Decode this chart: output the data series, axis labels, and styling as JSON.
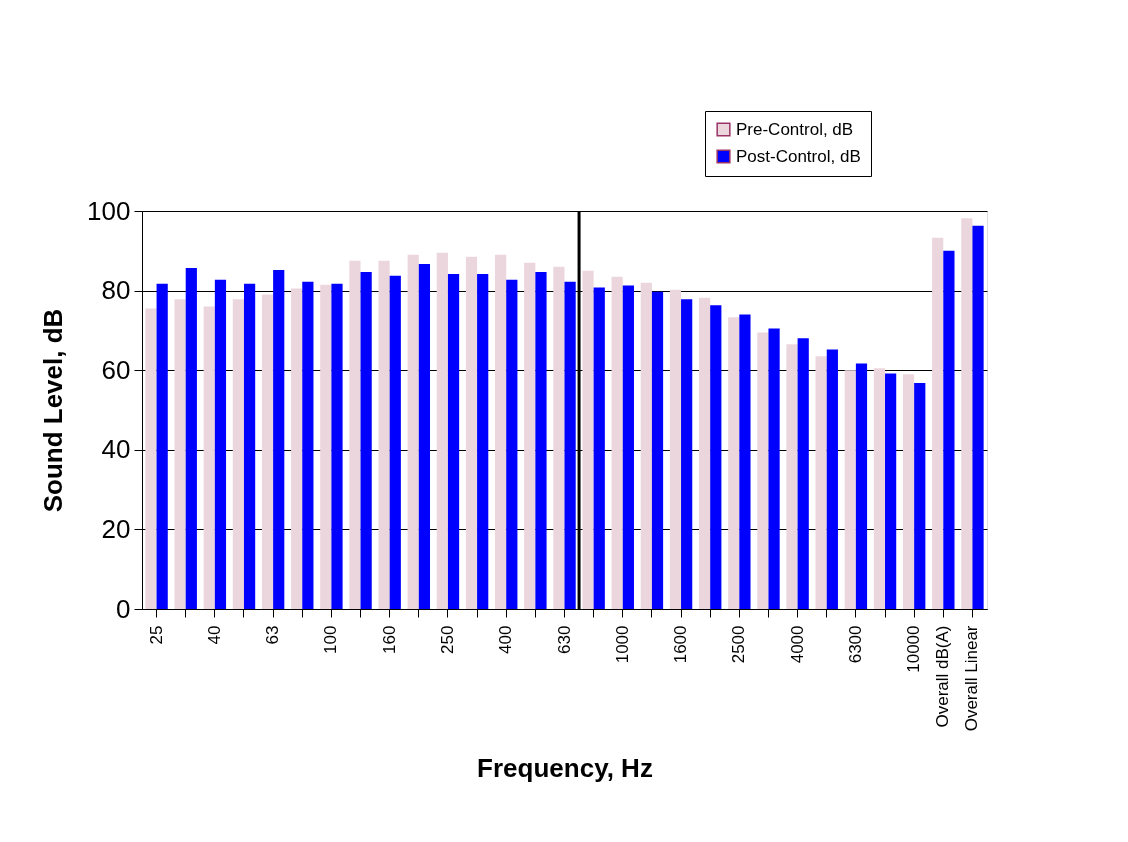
{
  "chart_data": {
    "type": "bar",
    "xlabel": "Frequency, Hz",
    "ylabel": "Sound Level, dB",
    "categories": [
      "25",
      null,
      "40",
      null,
      "63",
      null,
      "100",
      null,
      "160",
      null,
      "250",
      null,
      "400",
      null,
      "630",
      null,
      "1000",
      null,
      "1600",
      null,
      "2500",
      null,
      "4000",
      null,
      "6300",
      null,
      "10000",
      "Overall dB(A)",
      "Overall Linear"
    ],
    "series": [
      {
        "name": "Pre-Control, dB",
        "color": "#ecd6de",
        "values": [
          75.5,
          77.8,
          76,
          77.8,
          79,
          80.5,
          81.5,
          87.5,
          87.5,
          89,
          89.5,
          88.5,
          89,
          87,
          86,
          85,
          83.5,
          82,
          80.2,
          78.2,
          73.3,
          69.5,
          66.5,
          63.5,
          60,
          60.5,
          59,
          93.3,
          98.2
        ]
      },
      {
        "name": "Post-Control, dB",
        "color": "#0000ff",
        "values": [
          81.7,
          85.7,
          82.7,
          81.7,
          85.2,
          82.2,
          81.7,
          84.7,
          83.7,
          86.7,
          84.2,
          84.2,
          82.7,
          84.7,
          82.2,
          80.8,
          81.3,
          79.7,
          77.8,
          76.3,
          74,
          70.5,
          68,
          65.2,
          61.7,
          59.2,
          56.8,
          90,
          96.3
        ]
      }
    ],
    "ylim": [
      0,
      100
    ],
    "yticks": [
      0,
      20,
      40,
      60,
      80,
      100
    ],
    "grid": "y",
    "legend": "top right",
    "ref_lines": [
      {
        "axis": "x",
        "value": "630",
        "color": "#000000"
      }
    ]
  }
}
